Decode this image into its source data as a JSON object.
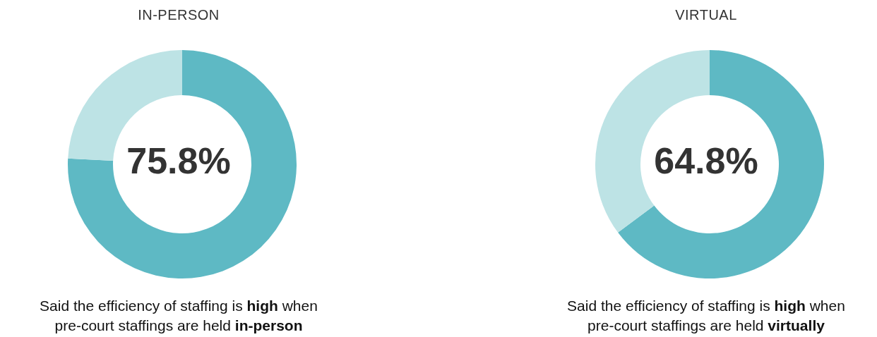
{
  "chart_data": [
    {
      "type": "donut",
      "title": "IN-PERSON",
      "categories": [
        null,
        null
      ],
      "values": [
        75.8,
        24.2
      ],
      "colors": [
        "#5eb9c4",
        "#bde3e5"
      ],
      "legend": false,
      "annotations": [
        "75.8%",
        "Said the efficiency of staffing is ",
        "high",
        " when pre-court staffings are held ",
        "in-person"
      ]
    },
    {
      "type": "donut",
      "title": "VIRTUAL",
      "categories": [
        null,
        null
      ],
      "values": [
        64.8,
        35.2
      ],
      "colors": [
        "#5eb9c4",
        "#bde3e5"
      ],
      "legend": false,
      "annotations": [
        "64.8%",
        "Said the efficiency of staffing is ",
        "high",
        " when pre-court staffings are held ",
        "virtually"
      ]
    }
  ]
}
